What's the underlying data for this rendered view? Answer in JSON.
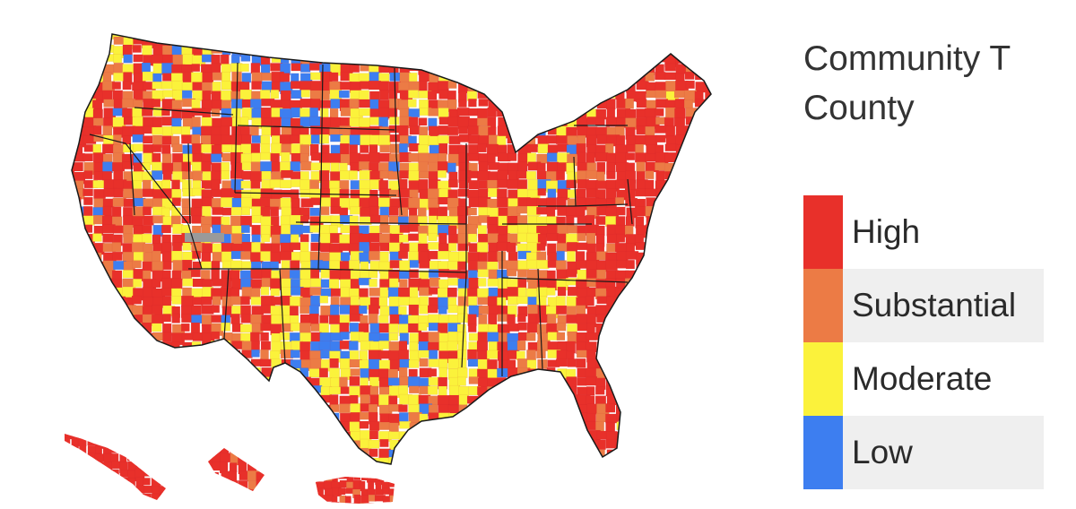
{
  "legend": {
    "title_line1": "Community T",
    "title_line2": "County",
    "items": [
      {
        "label": "High",
        "color": "#e8302a"
      },
      {
        "label": "Substantial",
        "color": "#ec7b45"
      },
      {
        "label": "Moderate",
        "color": "#fbf23b"
      },
      {
        "label": "Low",
        "color": "#3d7ef0"
      }
    ]
  },
  "map": {
    "no_data_color": "#9a9a9a",
    "border_color": "#1a1a1a"
  }
}
